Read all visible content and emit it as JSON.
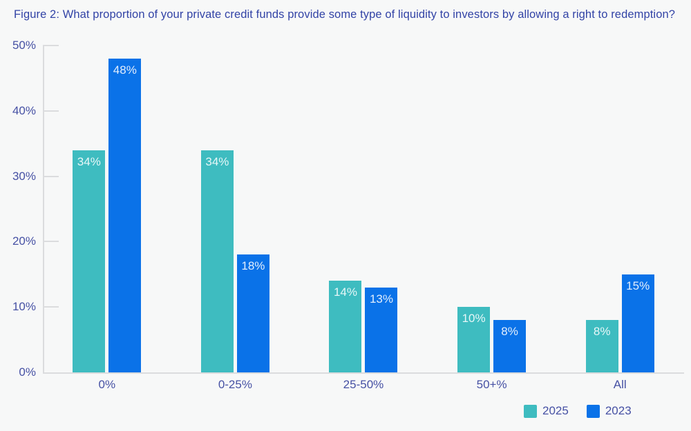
{
  "colors": {
    "background": "#F7F8F8",
    "title_text": "#3243A6",
    "axis_text": "#4651A4",
    "axis_line": "#DBDCDE",
    "bar_label_text": "rgba(255,255,255,0.88)"
  },
  "chart_data": {
    "type": "bar",
    "title": "Figure 2: What proportion of your private credit funds provide some type of liquidity to investors by allowing a right to redemption?",
    "categories": [
      "0%",
      "0-25%",
      "25-50%",
      "50+%",
      "All"
    ],
    "series": [
      {
        "name": "2025",
        "color": "#3EBCC0",
        "values": [
          34,
          34,
          14,
          10,
          8
        ]
      },
      {
        "name": "2023",
        "color": "#0A72E8",
        "values": [
          48,
          18,
          13,
          8,
          15
        ]
      }
    ],
    "ylim": [
      0,
      50
    ],
    "yticks": [
      0,
      10,
      20,
      30,
      40,
      50
    ],
    "ytick_suffix": "%",
    "value_suffix": "%",
    "grid": false,
    "legend_position": "bottom-right"
  }
}
